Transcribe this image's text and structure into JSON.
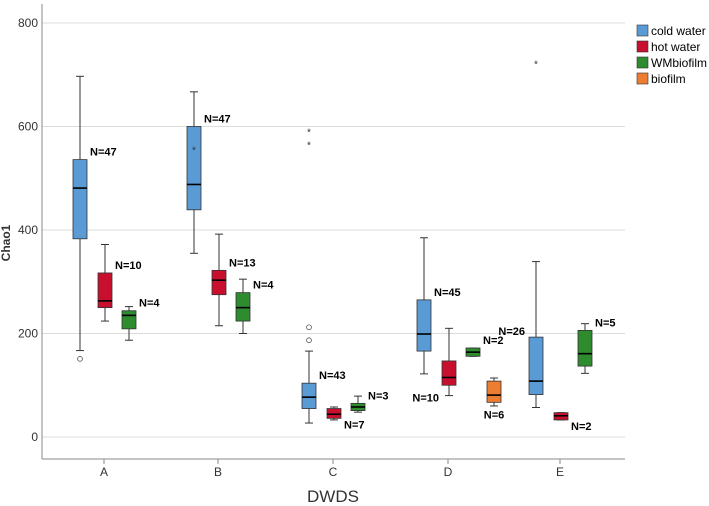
{
  "chart_data": {
    "type": "boxplot",
    "xlabel": "DWDS",
    "ylabel": "Chao1",
    "ylim": [
      0,
      800
    ],
    "y_ticks": [
      0,
      200,
      400,
      600,
      800
    ],
    "grid": true,
    "legend_position": "top-right",
    "categories": [
      "A",
      "B",
      "C",
      "D",
      "E"
    ],
    "series": [
      {
        "name": "cold water",
        "color": "#5b9bd5",
        "boxes": [
          {
            "category": "A",
            "min": 167,
            "q1": 383,
            "median": 481,
            "q3": 536,
            "max": 697,
            "n_label": "N=47",
            "outliers": [
              151
            ],
            "extremes": []
          },
          {
            "category": "B",
            "min": 355,
            "q1": 439,
            "median": 488,
            "q3": 600,
            "max": 667,
            "n_label": "N=47",
            "outliers": [],
            "extremes": [
              556
            ]
          },
          {
            "category": "C",
            "min": 27,
            "q1": 55,
            "median": 77,
            "q3": 104,
            "max": 166,
            "n_label": "N=43",
            "outliers": [
              187,
              212
            ],
            "extremes": [
              565,
              590
            ]
          },
          {
            "category": "D",
            "min": 122,
            "q1": 166,
            "median": 199,
            "q3": 265,
            "max": 385,
            "n_label": "N=45",
            "outliers": [],
            "extremes": []
          },
          {
            "category": "E",
            "min": 57,
            "q1": 82,
            "median": 108,
            "q3": 193,
            "max": 339,
            "n_label": "N=26",
            "outliers": [],
            "extremes": [
              722
            ]
          }
        ]
      },
      {
        "name": "hot water",
        "color": "#c8102e",
        "boxes": [
          {
            "category": "A",
            "min": 224,
            "q1": 250,
            "median": 263,
            "q3": 317,
            "max": 372,
            "n_label": "N=10",
            "outliers": [],
            "extremes": []
          },
          {
            "category": "B",
            "min": 215,
            "q1": 275,
            "median": 303,
            "q3": 322,
            "max": 392,
            "n_label": "N=13",
            "outliers": [],
            "extremes": []
          },
          {
            "category": "C",
            "min": 33,
            "q1": 36,
            "median": 44,
            "q3": 55,
            "max": 58,
            "n_label": "N=7",
            "outliers": [],
            "extremes": []
          },
          {
            "category": "D",
            "min": 80,
            "q1": 100,
            "median": 115,
            "q3": 147,
            "max": 210,
            "n_label": "N=10",
            "outliers": [],
            "extremes": []
          },
          {
            "category": "E",
            "min": 33,
            "q1": 33,
            "median": 41,
            "q3": 47,
            "max": 47,
            "n_label": "N=2",
            "outliers": [],
            "extremes": []
          }
        ]
      },
      {
        "name": "WMbiofilm",
        "color": "#2e8b2e",
        "boxes": [
          {
            "category": "A",
            "min": 187,
            "q1": 209,
            "median": 235,
            "q3": 244,
            "max": 252,
            "n_label": "N=4",
            "outliers": [],
            "extremes": []
          },
          {
            "category": "B",
            "min": 200,
            "q1": 224,
            "median": 250,
            "q3": 279,
            "max": 305,
            "n_label": "N=4",
            "outliers": [],
            "extremes": []
          },
          {
            "category": "C",
            "min": 48,
            "q1": 51,
            "median": 58,
            "q3": 65,
            "max": 79,
            "n_label": "N=3",
            "outliers": [],
            "extremes": []
          },
          {
            "category": "D",
            "min": 156,
            "q1": 156,
            "median": 164,
            "q3": 172,
            "max": 172,
            "n_label": "N=2",
            "outliers": [],
            "extremes": []
          },
          {
            "category": "E",
            "min": 123,
            "q1": 137,
            "median": 161,
            "q3": 206,
            "max": 219,
            "n_label": "N=5",
            "outliers": [],
            "extremes": []
          }
        ]
      },
      {
        "name": "biofilm",
        "color": "#ed7d31",
        "boxes": [
          {
            "category": "D",
            "min": 60,
            "q1": 67,
            "median": 81,
            "q3": 108,
            "max": 114,
            "n_label": "N=6",
            "outliers": [],
            "extremes": []
          }
        ]
      }
    ]
  }
}
